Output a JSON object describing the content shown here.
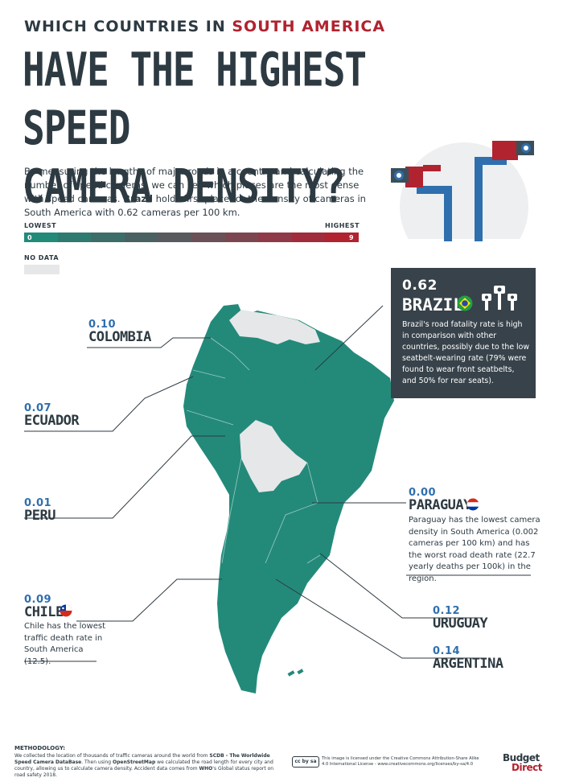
{
  "header": {
    "kicker_prefix": "WHICH COUNTRIES IN",
    "kicker_accent": "SOUTH AMERICA",
    "headline_line1": "HAVE THE HIGHEST SPEED",
    "headline_line2": "CAMERA DENSITY?"
  },
  "intro": {
    "text_before": "By measuring the lengths of major roads in a country and calculating the number of speed cameras, we can see which places are the most dense with speed cameras.",
    "bold": "Brazil",
    "text_after": "holds first place for the density of cameras in South America with 0.62 cameras per 100 km."
  },
  "legend": {
    "lowest": "LOWEST",
    "highest": "HIGHEST",
    "min": "0",
    "max": "9",
    "no_data": "NO DATA",
    "colors": [
      "#238a7a",
      "#2f7a70",
      "#3d6d68",
      "#4a6162",
      "#585a5d",
      "#6a5157",
      "#7c4651",
      "#8e3a49",
      "#a02c3c",
      "#b0232f"
    ],
    "no_data_color": "#e6e7e9"
  },
  "countries": {
    "colombia": {
      "value": "0.10",
      "name": "COLOMBIA"
    },
    "ecuador": {
      "value": "0.07",
      "name": "ECUADOR"
    },
    "peru": {
      "value": "0.01",
      "name": "PERU"
    },
    "chile": {
      "value": "0.09",
      "name": "CHILE",
      "desc": "Chile has the lowest traffic death rate in South America (12.5)."
    },
    "brazil": {
      "value": "0.62",
      "name": "BRAZIL",
      "desc": "Brazil's road fatality rate is high in comparison with other countries, possibly due to the low seatbelt-wearing rate (79% were found to wear front seatbelts, and 50% for rear seats)."
    },
    "paraguay": {
      "value": "0.00",
      "name": "PARAGUAY",
      "desc": "Paraguay has the lowest camera density in South America (0.002 cameras per 100 km) and has the worst road death rate (22.7 yearly deaths per 100k) in the region."
    },
    "uruguay": {
      "value": "0.12",
      "name": "URUGUAY"
    },
    "argentina": {
      "value": "0.14",
      "name": "ARGENTINA"
    }
  },
  "colors": {
    "map_fill": "#238a7a",
    "accent_red": "#b0232f",
    "value_blue": "#2f6fad",
    "dark": "#2d3a42"
  },
  "footer": {
    "title": "METHODOLOGY:",
    "text1": "We collected the location of thousands of traffic cameras around the world from",
    "bold1": "SCDB - The Worldwide Speed Camera DataBase",
    "text2": ". Then using",
    "bold2": "OpenStreetMap",
    "text3": "we calculated the road length for every city and country, allowing us to calculate camera density. Accident data comes from",
    "bold3": "WHO",
    "text4": "'s Global status report on road safety 2018.",
    "license": "This image is licensed under the Creative Commons Attribution-Share Alike 4.0 International License - www.creativecommons.org/licenses/by-sa/4.0",
    "cc_badge": "cc by sa",
    "logo_line1": "Budget",
    "logo_line2": "Direct"
  }
}
